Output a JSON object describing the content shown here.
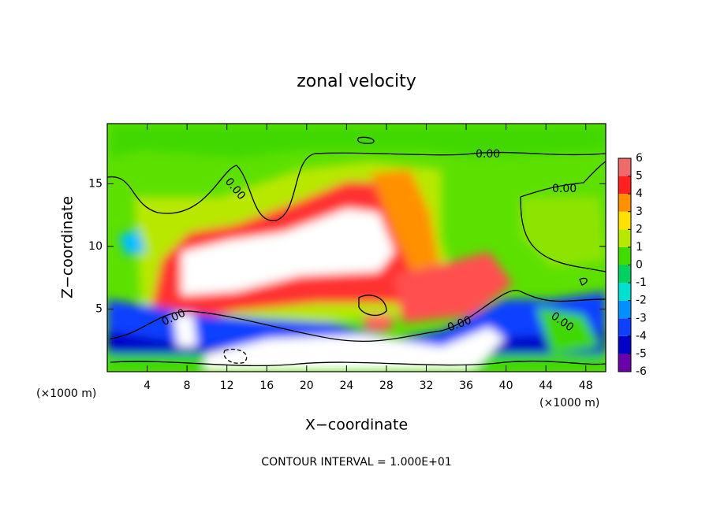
{
  "chart_data": {
    "type": "contour",
    "title": "zonal velocity",
    "xlabel": "X−coordinate",
    "ylabel": "Z−coordinate",
    "x_unit_left": "(×1000 m)",
    "x_unit_right": "(×1000 m)",
    "footer": "CONTOUR INTERVAL = 1.000E+01",
    "xlim": [
      0,
      50
    ],
    "xticks": [
      4,
      8,
      12,
      16,
      20,
      24,
      28,
      32,
      36,
      40,
      44,
      48
    ],
    "ylim": [
      0,
      19.8
    ],
    "yticks": [
      5,
      10,
      15
    ],
    "colorbar": {
      "levels": [
        -6,
        -5,
        -4,
        -3,
        -2,
        -1,
        0,
        1,
        2,
        3,
        4,
        5,
        6
      ],
      "colors": [
        "#6a00a8",
        "#0000c8",
        "#1040ff",
        "#0090ff",
        "#00e0d0",
        "#00d060",
        "#40dc00",
        "#b8e800",
        "#ffe000",
        "#ff9000",
        "#ff2020",
        "#f06a6a"
      ],
      "ticks": [
        6,
        5,
        4,
        3,
        2,
        1,
        0,
        -1,
        -2,
        -3,
        -4,
        -5,
        -6
      ]
    },
    "contour_labels": [
      "0.00",
      "0.00",
      "0.00",
      "0.00",
      "0.00",
      "0.00"
    ]
  }
}
